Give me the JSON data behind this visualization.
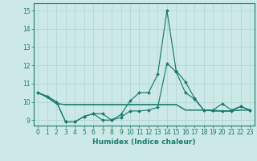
{
  "xlabel": "Humidex (Indice chaleur)",
  "x": [
    0,
    1,
    2,
    3,
    4,
    5,
    6,
    7,
    8,
    9,
    10,
    11,
    12,
    13,
    14,
    15,
    16,
    17,
    18,
    19,
    20,
    21,
    22,
    23
  ],
  "line1": [
    10.5,
    10.3,
    10.0,
    8.9,
    8.9,
    9.2,
    9.35,
    9.35,
    9.0,
    9.3,
    10.05,
    10.5,
    10.5,
    11.5,
    15.0,
    11.7,
    11.1,
    10.2,
    9.55,
    9.55,
    9.9,
    9.55,
    9.75,
    9.55
  ],
  "line2": [
    10.5,
    10.3,
    10.0,
    8.9,
    8.9,
    9.2,
    9.35,
    9.0,
    9.0,
    9.15,
    9.5,
    9.5,
    9.55,
    9.7,
    12.1,
    11.65,
    10.5,
    10.15,
    9.55,
    9.55,
    9.5,
    9.5,
    9.75,
    9.55
  ],
  "line3": [
    10.5,
    10.25,
    9.9,
    9.85,
    9.85,
    9.85,
    9.85,
    9.85,
    9.85,
    9.85,
    9.85,
    9.85,
    9.85,
    9.85,
    9.85,
    9.85,
    9.55,
    9.55,
    9.55,
    9.5,
    9.5,
    9.5,
    9.55,
    9.55
  ],
  "line4": [
    10.5,
    10.25,
    9.9,
    9.85,
    9.85,
    9.85,
    9.85,
    9.85,
    9.85,
    9.85,
    9.85,
    9.85,
    9.85,
    9.85,
    9.85,
    9.85,
    9.55,
    9.55,
    9.55,
    9.5,
    9.5,
    9.5,
    9.55,
    9.55
  ],
  "line_color": "#1a7a6e",
  "bg_color": "#cce9e7",
  "grid_color": "#afd4d1",
  "ylim": [
    8.7,
    15.4
  ],
  "yticks": [
    9,
    10,
    11,
    12,
    13,
    14,
    15
  ],
  "xlim": [
    -0.5,
    23.5
  ],
  "tick_fontsize": 5.5,
  "xlabel_fontsize": 6.5
}
